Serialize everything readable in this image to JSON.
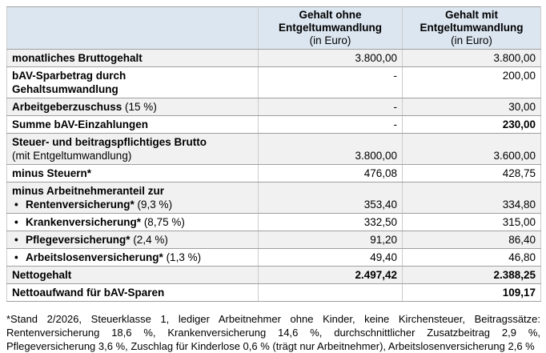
{
  "colors": {
    "header_bg": "#dce6f1",
    "shaded_bg": "#f1f1f1",
    "plain_bg": "#ffffff",
    "border_h": "#9f9f9f",
    "border_v": "#cccccc",
    "text": "#000000"
  },
  "table": {
    "header": {
      "corner": "",
      "col_without": [
        "Gehalt ohne",
        "Entgeltumwandlung",
        "(in Euro)"
      ],
      "col_with": [
        "Gehalt mit",
        "Entgeltumwandlung",
        "(in Euro)"
      ]
    },
    "rows": [
      {
        "bg": "shaded",
        "valign": "middle",
        "lines": [
          {
            "bullet": false,
            "bold": "monatliches Bruttogehalt",
            "regular": ""
          }
        ],
        "value_without": {
          "text": "3.800,00",
          "bold": false
        },
        "value_with": {
          "text": "3.800,00",
          "bold": false
        }
      },
      {
        "bg": "plain",
        "valign": "top",
        "lines": [
          {
            "bullet": false,
            "bold": "bAV-Sparbetrag durch",
            "regular": ""
          },
          {
            "bullet": false,
            "bold": "Gehaltsumwandlung",
            "regular": ""
          }
        ],
        "value_without": {
          "text": "-",
          "bold": false
        },
        "value_with": {
          "text": "200,00",
          "bold": false
        }
      },
      {
        "bg": "shaded",
        "valign": "middle",
        "lines": [
          {
            "bullet": false,
            "bold": "Arbeitgeberzuschuss",
            "regular": " (15 %)"
          }
        ],
        "value_without": {
          "text": "-",
          "bold": false
        },
        "value_with": {
          "text": "30,00",
          "bold": false
        }
      },
      {
        "bg": "plain",
        "valign": "middle",
        "lines": [
          {
            "bullet": false,
            "bold": "Summe bAV-Einzahlungen",
            "regular": ""
          }
        ],
        "value_without": {
          "text": "-",
          "bold": false
        },
        "value_with": {
          "text": "230,00",
          "bold": true
        }
      },
      {
        "bg": "shaded",
        "valign": "bottom",
        "lines": [
          {
            "bullet": false,
            "bold": "Steuer- und beitragspflichtiges Brutto",
            "regular": ""
          },
          {
            "bullet": false,
            "bold": "",
            "regular": "(mit Entgeltumwandlung)"
          }
        ],
        "value_without": {
          "text": "3.800,00",
          "bold": false
        },
        "value_with": {
          "text": "3.600,00",
          "bold": false
        }
      },
      {
        "bg": "plain",
        "valign": "middle",
        "lines": [
          {
            "bullet": false,
            "bold": "minus Steuern*",
            "regular": ""
          }
        ],
        "value_without": {
          "text": "476,08",
          "bold": false
        },
        "value_with": {
          "text": "428,75",
          "bold": false
        }
      },
      {
        "bg": "shaded",
        "valign": "bottom",
        "lines": [
          {
            "bullet": false,
            "bold": "minus Arbeitnehmeranteil zur",
            "regular": ""
          },
          {
            "bullet": true,
            "bold": "Rentenversicherung*",
            "regular": " (9,3 %)"
          }
        ],
        "value_without": {
          "text": "353,40",
          "bold": false
        },
        "value_with": {
          "text": "334,80",
          "bold": false
        }
      },
      {
        "bg": "plain",
        "valign": "middle",
        "lines": [
          {
            "bullet": true,
            "bold": "Krankenversicherung*",
            "regular": " (8,75 %)"
          }
        ],
        "value_without": {
          "text": "332,50",
          "bold": false
        },
        "value_with": {
          "text": "315,00",
          "bold": false
        }
      },
      {
        "bg": "shaded",
        "valign": "middle",
        "lines": [
          {
            "bullet": true,
            "bold": "Pflegeversicherung*",
            "regular": " (2,4 %)"
          }
        ],
        "value_without": {
          "text": "91,20",
          "bold": false
        },
        "value_with": {
          "text": "86,40",
          "bold": false
        }
      },
      {
        "bg": "plain",
        "valign": "middle",
        "lines": [
          {
            "bullet": true,
            "bold": "Arbeitslosenversicherung*",
            "regular": " (1,3 %)"
          }
        ],
        "value_without": {
          "text": "49,40",
          "bold": false
        },
        "value_with": {
          "text": "46,80",
          "bold": false
        }
      },
      {
        "bg": "shaded",
        "valign": "middle",
        "lines": [
          {
            "bullet": false,
            "bold": "Nettogehalt",
            "regular": ""
          }
        ],
        "value_without": {
          "text": "2.497,42",
          "bold": true
        },
        "value_with": {
          "text": "2.388,25",
          "bold": true
        }
      },
      {
        "bg": "plain",
        "valign": "middle",
        "lines": [
          {
            "bullet": false,
            "bold": "Nettoaufwand für bAV-Sparen",
            "regular": ""
          }
        ],
        "value_without": {
          "text": "",
          "bold": false
        },
        "value_with": {
          "text": "109,17",
          "bold": true
        }
      }
    ]
  },
  "footnote": {
    "text": "*Stand 2/2026, Steuerklasse 1, lediger Arbeitnehmer ohne Kinder, keine Kirchensteuer, Beitragssätze: Rentenversicherung 18,6 %, Krankenversicherung 14,6 %, durchschnittlicher Zusatzbeitrag 2,9 %, Pflegeversicherung 3,6 %, Zuschlag für Kinderlose 0,6 % (trägt nur Arbeitnehmer), Arbeitslosenversicherung 2,6 %"
  }
}
